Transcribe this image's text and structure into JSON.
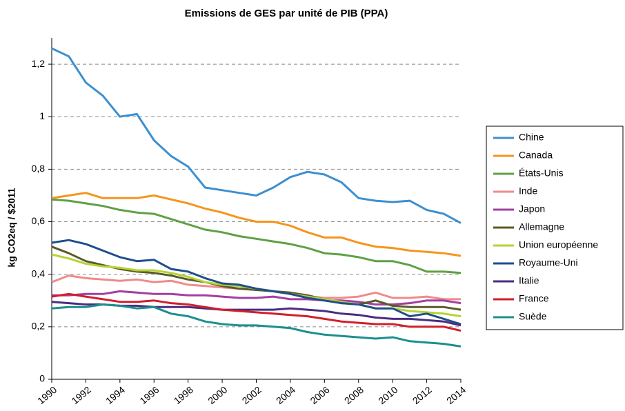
{
  "chart_data": {
    "type": "line",
    "title": "Emissions de GES par unité de PIB (PPA)",
    "y_label": "kg CO2eq / $2011",
    "x": [
      1990,
      1991,
      1992,
      1993,
      1994,
      1995,
      1996,
      1997,
      1998,
      1999,
      2000,
      2001,
      2002,
      2003,
      2004,
      2005,
      2006,
      2007,
      2008,
      2009,
      2010,
      2011,
      2012,
      2013,
      2014
    ],
    "xlim": [
      1990,
      2014
    ],
    "xticks": [
      1990,
      1992,
      1994,
      1996,
      1998,
      2000,
      2002,
      2004,
      2006,
      2008,
      2010,
      2012,
      2014
    ],
    "ylim": [
      0,
      1.3
    ],
    "yticks": [
      0,
      {
        "value": 0.2,
        "label": "0,2"
      },
      {
        "value": 0.4,
        "label": "0,4"
      },
      {
        "value": 0.6,
        "label": "0,6"
      },
      {
        "value": 0.8,
        "label": "0,8"
      },
      1,
      {
        "value": 1.2,
        "label": "1,2"
      }
    ],
    "grid": true,
    "legend": "right",
    "series": [
      {
        "name": "Chine",
        "color": "#3c8fd0",
        "values": [
          1.26,
          1.23,
          1.13,
          1.08,
          1.0,
          1.01,
          0.91,
          0.85,
          0.81,
          0.73,
          0.72,
          0.71,
          0.7,
          0.73,
          0.77,
          0.79,
          0.78,
          0.75,
          0.69,
          0.68,
          0.675,
          0.68,
          0.645,
          0.63,
          0.595
        ]
      },
      {
        "name": "Canada",
        "color": "#f7941d",
        "values": [
          0.69,
          0.7,
          0.71,
          0.69,
          0.69,
          0.69,
          0.7,
          0.685,
          0.67,
          0.65,
          0.635,
          0.615,
          0.6,
          0.6,
          0.585,
          0.56,
          0.54,
          0.54,
          0.52,
          0.505,
          0.5,
          0.49,
          0.485,
          0.48,
          0.47
        ]
      },
      {
        "name": "États-Unis",
        "color": "#5fa044",
        "values": [
          0.685,
          0.68,
          0.67,
          0.66,
          0.645,
          0.635,
          0.63,
          0.61,
          0.59,
          0.57,
          0.56,
          0.545,
          0.535,
          0.525,
          0.515,
          0.5,
          0.48,
          0.475,
          0.465,
          0.45,
          0.45,
          0.435,
          0.41,
          0.41,
          0.405
        ]
      },
      {
        "name": "Inde",
        "color": "#f08a8a",
        "values": [
          0.37,
          0.395,
          0.385,
          0.38,
          0.375,
          0.38,
          0.37,
          0.375,
          0.36,
          0.355,
          0.35,
          0.345,
          0.345,
          0.335,
          0.325,
          0.315,
          0.31,
          0.31,
          0.315,
          0.33,
          0.31,
          0.31,
          0.315,
          0.305,
          0.305
        ]
      },
      {
        "name": "Japon",
        "color": "#a33fa0",
        "values": [
          0.32,
          0.32,
          0.325,
          0.325,
          0.335,
          0.33,
          0.325,
          0.325,
          0.32,
          0.32,
          0.315,
          0.31,
          0.31,
          0.315,
          0.305,
          0.305,
          0.3,
          0.3,
          0.295,
          0.285,
          0.285,
          0.29,
          0.3,
          0.3,
          0.29
        ]
      },
      {
        "name": "Allemagne",
        "color": "#5b5a2a",
        "values": [
          0.505,
          0.48,
          0.45,
          0.435,
          0.42,
          0.41,
          0.405,
          0.395,
          0.38,
          0.37,
          0.355,
          0.345,
          0.34,
          0.335,
          0.33,
          0.32,
          0.305,
          0.29,
          0.285,
          0.3,
          0.28,
          0.275,
          0.275,
          0.275,
          0.265
        ]
      },
      {
        "name": "Union européenne",
        "color": "#b5d334",
        "values": [
          0.475,
          0.46,
          0.44,
          0.43,
          0.425,
          0.415,
          0.415,
          0.405,
          0.39,
          0.37,
          0.36,
          0.355,
          0.345,
          0.335,
          0.325,
          0.315,
          0.305,
          0.295,
          0.285,
          0.27,
          0.27,
          0.26,
          0.255,
          0.25,
          0.24
        ]
      },
      {
        "name": "Royaume-Uni",
        "color": "#1f4e8c",
        "values": [
          0.52,
          0.53,
          0.515,
          0.49,
          0.465,
          0.45,
          0.455,
          0.42,
          0.41,
          0.385,
          0.365,
          0.36,
          0.345,
          0.335,
          0.325,
          0.31,
          0.3,
          0.29,
          0.285,
          0.27,
          0.27,
          0.24,
          0.25,
          0.23,
          0.21
        ]
      },
      {
        "name": "Italie",
        "color": "#4b2d7f",
        "values": [
          0.295,
          0.29,
          0.285,
          0.285,
          0.28,
          0.28,
          0.275,
          0.275,
          0.275,
          0.27,
          0.265,
          0.265,
          0.265,
          0.265,
          0.27,
          0.265,
          0.26,
          0.25,
          0.245,
          0.235,
          0.23,
          0.23,
          0.225,
          0.22,
          0.205
        ]
      },
      {
        "name": "France",
        "color": "#d11f2a",
        "values": [
          0.315,
          0.325,
          0.315,
          0.305,
          0.295,
          0.295,
          0.3,
          0.29,
          0.285,
          0.275,
          0.265,
          0.26,
          0.255,
          0.25,
          0.245,
          0.24,
          0.23,
          0.22,
          0.215,
          0.21,
          0.21,
          0.2,
          0.2,
          0.2,
          0.185
        ]
      },
      {
        "name": "Suède",
        "color": "#1b8f8f",
        "values": [
          0.27,
          0.275,
          0.275,
          0.285,
          0.28,
          0.27,
          0.275,
          0.25,
          0.24,
          0.22,
          0.21,
          0.205,
          0.205,
          0.2,
          0.195,
          0.18,
          0.17,
          0.165,
          0.16,
          0.155,
          0.16,
          0.145,
          0.14,
          0.135,
          0.125
        ]
      }
    ]
  }
}
